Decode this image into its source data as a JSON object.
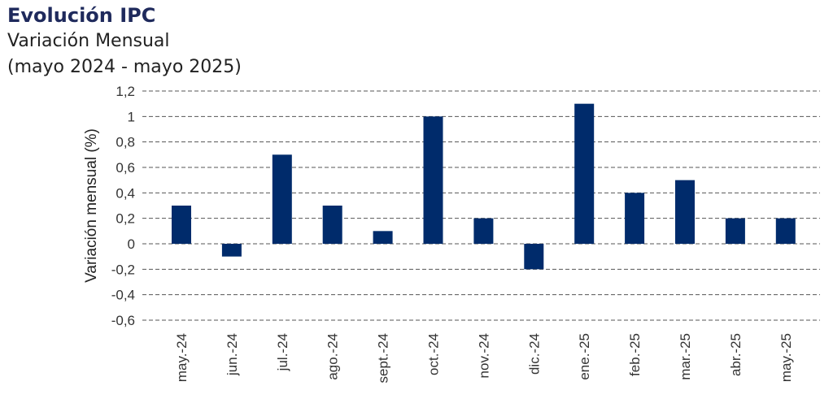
{
  "header": {
    "title": "Evolución IPC",
    "subtitle": "Variación Mensual",
    "period": "(mayo 2024 - mayo 2025)"
  },
  "colors": {
    "bar": "#002b6b",
    "title": "#1f2a5c"
  },
  "chart_data": {
    "type": "bar",
    "categories": [
      "may.-24",
      "jun.-24",
      "jul.-24",
      "ago.-24",
      "sept.-24",
      "oct.-24",
      "nov.-24",
      "dic.-24",
      "ene.-25",
      "feb.-25",
      "mar.-25",
      "abr.-25",
      "may.-25"
    ],
    "values": [
      0.3,
      -0.1,
      0.7,
      0.3,
      0.1,
      1.0,
      0.2,
      -0.2,
      1.1,
      0.4,
      0.5,
      0.2,
      0.2
    ],
    "ylabel": "Variación mensual (%)",
    "ylim": [
      -0.6,
      1.2
    ],
    "yticks": [
      "1,2",
      "1",
      "0,8",
      "0,6",
      "0,4",
      "0,2",
      "0",
      "-0,2",
      "-0,4",
      "-0,6"
    ],
    "ytick_values": [
      1.2,
      1.0,
      0.8,
      0.6,
      0.4,
      0.2,
      0,
      -0.2,
      -0.4,
      -0.6
    ],
    "grid": true
  }
}
